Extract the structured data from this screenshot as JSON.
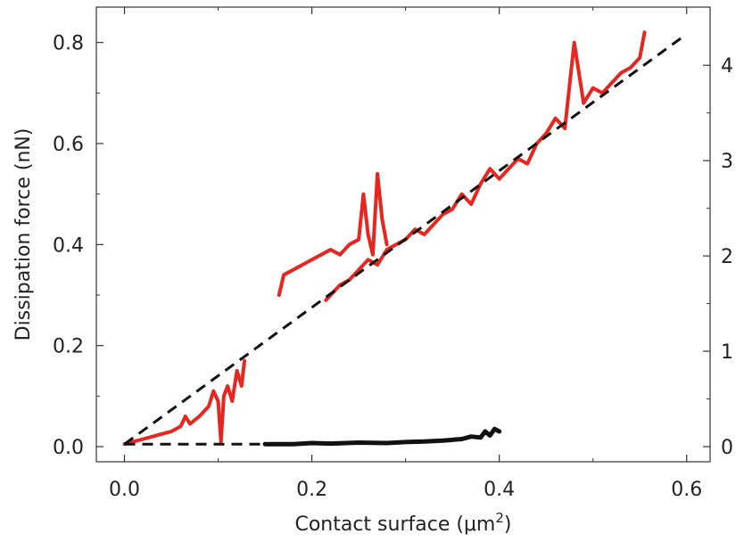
{
  "chart_data": {
    "type": "line",
    "title": "",
    "xlabel": "Contact surface (μm²)",
    "xlabel_parts": {
      "base": "Contact surface (μm",
      "sup": "2",
      "close": ")"
    },
    "ylabel": "Dissipation force (nN)",
    "y2label": "",
    "xlim": [
      -0.03,
      0.625
    ],
    "ylim": [
      -0.03,
      0.87
    ],
    "y2lim": [
      -0.159,
      4.61
    ],
    "xticks": [
      0.0,
      0.2,
      0.4,
      0.6
    ],
    "xtick_labels": [
      "0.0",
      "0.2",
      "0.4",
      "0.6"
    ],
    "yticks": [
      0.0,
      0.2,
      0.4,
      0.6,
      0.8
    ],
    "ytick_labels": [
      "0.0",
      "0.2",
      "0.4",
      "0.6",
      "0.8"
    ],
    "y2ticks": [
      0,
      1,
      2,
      3,
      4
    ],
    "y2tick_labels": [
      "0",
      "1",
      "2",
      "3",
      "4"
    ],
    "grid": false,
    "legend": "none",
    "series": [
      {
        "color": "#e8251f",
        "axis": "left",
        "x": [
          0.0,
          0.01,
          0.02,
          0.03,
          0.04,
          0.05,
          0.06,
          0.065,
          0.07,
          0.08,
          0.09,
          0.095,
          0.1,
          0.103,
          0.106,
          0.11,
          0.115,
          0.12,
          0.125,
          0.128
        ],
        "y": [
          0.005,
          0.01,
          0.015,
          0.02,
          0.025,
          0.03,
          0.04,
          0.06,
          0.045,
          0.06,
          0.08,
          0.11,
          0.09,
          0.01,
          0.1,
          0.12,
          0.09,
          0.15,
          0.12,
          0.17
        ]
      },
      {
        "color": "#e8251f",
        "axis": "left",
        "x": [
          0.165,
          0.17,
          0.18,
          0.19,
          0.2,
          0.21,
          0.22,
          0.23,
          0.24,
          0.25,
          0.255,
          0.26,
          0.265,
          0.27,
          0.275,
          0.28
        ],
        "y": [
          0.3,
          0.34,
          0.35,
          0.36,
          0.37,
          0.38,
          0.39,
          0.38,
          0.4,
          0.41,
          0.5,
          0.42,
          0.38,
          0.54,
          0.45,
          0.4
        ]
      },
      {
        "color": "#e8251f",
        "axis": "left",
        "x": [
          0.215,
          0.22,
          0.23,
          0.24,
          0.25,
          0.26,
          0.27,
          0.28,
          0.29,
          0.3,
          0.31,
          0.32,
          0.33,
          0.34,
          0.35,
          0.36,
          0.37,
          0.38,
          0.39,
          0.4,
          0.41,
          0.42,
          0.43,
          0.44,
          0.45,
          0.46,
          0.47,
          0.48,
          0.49,
          0.5,
          0.51,
          0.52,
          0.53,
          0.54,
          0.55,
          0.555
        ],
        "y": [
          0.29,
          0.3,
          0.32,
          0.33,
          0.35,
          0.37,
          0.36,
          0.39,
          0.4,
          0.41,
          0.43,
          0.42,
          0.44,
          0.46,
          0.47,
          0.5,
          0.48,
          0.52,
          0.55,
          0.53,
          0.55,
          0.57,
          0.56,
          0.6,
          0.62,
          0.65,
          0.63,
          0.8,
          0.68,
          0.71,
          0.7,
          0.72,
          0.74,
          0.75,
          0.77,
          0.82
        ]
      },
      {
        "color": "#111111",
        "axis": "left",
        "x": [
          0.15,
          0.18,
          0.2,
          0.22,
          0.25,
          0.28,
          0.3,
          0.32,
          0.34,
          0.36,
          0.37,
          0.38,
          0.385,
          0.39,
          0.395,
          0.4
        ],
        "y": [
          0.005,
          0.005,
          0.007,
          0.006,
          0.008,
          0.007,
          0.009,
          0.01,
          0.012,
          0.015,
          0.02,
          0.018,
          0.03,
          0.022,
          0.035,
          0.03
        ]
      },
      {
        "color": "#111111",
        "axis": "left",
        "dashed": true,
        "x": [
          0.0,
          0.595
        ],
        "y": [
          0.005,
          0.81
        ]
      },
      {
        "color": "#111111",
        "axis": "left",
        "dashed": true,
        "x": [
          0.0,
          0.15
        ],
        "y": [
          0.005,
          0.005
        ]
      }
    ]
  }
}
